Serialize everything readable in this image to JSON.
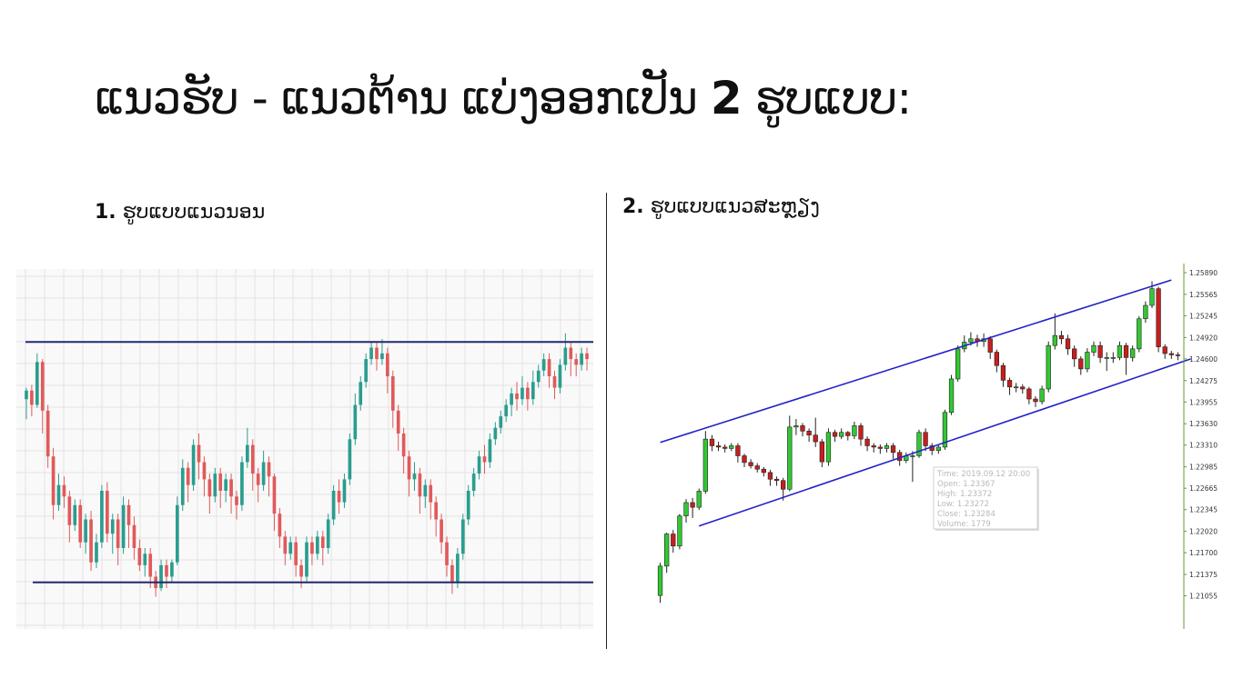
{
  "slide": {
    "title_main": "ແນວຮັບ - ແນວຕ້ານ ແບ່ງອອກເປັນ",
    "title_num": "2",
    "title_tail": "ຮູບແບບ:",
    "sub1_num": "1.",
    "sub1_text": "ຮູບແບບແນວນອນ",
    "sub2_num": "2.",
    "sub2_text": "ຮູບແບບແນວສະຫຼຽງ"
  },
  "colors": {
    "background": "#ffffff",
    "chart1_up": "#2a9d8f",
    "chart1_down": "#e05a5a",
    "chart1_level": "#1f2a6e",
    "chart2_up": "#32c832",
    "chart2_down": "#c81e1e",
    "chart2_channel": "#2222c8",
    "axis": "#669933"
  },
  "chart_data": [
    {
      "type": "candlestick",
      "pattern": "horizontal support and resistance",
      "grid": true,
      "y_range": [
        0,
        100
      ],
      "resistance_level": 92,
      "support_level": 8,
      "candles": [
        [
          72,
          75,
          65,
          76
        ],
        [
          75,
          70,
          66,
          77
        ],
        [
          70,
          85,
          69,
          88
        ],
        [
          85,
          68,
          60,
          86
        ],
        [
          68,
          52,
          48,
          70
        ],
        [
          52,
          35,
          30,
          55
        ],
        [
          35,
          42,
          33,
          46
        ],
        [
          42,
          38,
          34,
          45
        ],
        [
          38,
          28,
          22,
          40
        ],
        [
          28,
          35,
          26,
          37
        ],
        [
          35,
          22,
          20,
          37
        ],
        [
          22,
          30,
          18,
          32
        ],
        [
          30,
          15,
          12,
          33
        ],
        [
          15,
          22,
          13,
          25
        ],
        [
          22,
          40,
          20,
          42
        ],
        [
          40,
          25,
          22,
          43
        ],
        [
          25,
          30,
          18,
          32
        ],
        [
          30,
          20,
          14,
          32
        ],
        [
          20,
          35,
          18,
          38
        ],
        [
          35,
          28,
          20,
          37
        ],
        [
          28,
          20,
          16,
          31
        ],
        [
          20,
          14,
          12,
          23
        ],
        [
          14,
          18,
          10,
          20
        ],
        [
          18,
          10,
          6,
          20
        ],
        [
          10,
          6,
          3,
          12
        ],
        [
          6,
          14,
          5,
          16
        ],
        [
          14,
          10,
          6,
          16
        ],
        [
          10,
          15,
          8,
          16
        ],
        [
          15,
          35,
          14,
          38
        ],
        [
          35,
          48,
          33,
          51
        ],
        [
          48,
          42,
          36,
          50
        ],
        [
          42,
          56,
          40,
          58
        ],
        [
          56,
          50,
          44,
          60
        ],
        [
          50,
          44,
          38,
          52
        ],
        [
          44,
          38,
          32,
          46
        ],
        [
          38,
          46,
          36,
          48
        ],
        [
          46,
          40,
          34,
          48
        ],
        [
          40,
          44,
          36,
          46
        ],
        [
          44,
          38,
          32,
          46
        ],
        [
          38,
          35,
          30,
          40
        ],
        [
          35,
          50,
          33,
          52
        ],
        [
          50,
          56,
          48,
          62
        ],
        [
          56,
          46,
          40,
          58
        ],
        [
          46,
          42,
          36,
          48
        ],
        [
          42,
          50,
          40,
          54
        ],
        [
          50,
          45,
          38,
          52
        ],
        [
          45,
          32,
          26,
          46
        ],
        [
          32,
          24,
          20,
          34
        ],
        [
          24,
          18,
          14,
          26
        ],
        [
          18,
          22,
          16,
          24
        ],
        [
          22,
          14,
          10,
          24
        ],
        [
          14,
          10,
          6,
          16
        ],
        [
          10,
          22,
          8,
          24
        ],
        [
          22,
          18,
          14,
          24
        ],
        [
          18,
          24,
          16,
          26
        ],
        [
          24,
          20,
          14,
          26
        ],
        [
          20,
          30,
          18,
          32
        ],
        [
          30,
          40,
          28,
          42
        ],
        [
          40,
          36,
          32,
          44
        ],
        [
          36,
          44,
          34,
          46
        ],
        [
          44,
          58,
          42,
          60
        ],
        [
          58,
          70,
          56,
          74
        ],
        [
          70,
          78,
          68,
          80
        ],
        [
          78,
          86,
          76,
          88
        ],
        [
          86,
          90,
          84,
          92
        ],
        [
          90,
          86,
          82,
          92
        ],
        [
          86,
          88,
          84,
          93
        ],
        [
          88,
          80,
          74,
          90
        ],
        [
          80,
          68,
          62,
          82
        ],
        [
          68,
          60,
          54,
          70
        ],
        [
          60,
          52,
          46,
          62
        ],
        [
          52,
          44,
          38,
          54
        ],
        [
          44,
          46,
          40,
          50
        ],
        [
          46,
          38,
          32,
          48
        ],
        [
          38,
          42,
          34,
          44
        ],
        [
          42,
          36,
          30,
          44
        ],
        [
          36,
          30,
          24,
          38
        ],
        [
          30,
          22,
          18,
          32
        ],
        [
          22,
          14,
          10,
          24
        ],
        [
          14,
          8,
          4,
          16
        ],
        [
          8,
          18,
          6,
          20
        ],
        [
          18,
          30,
          16,
          32
        ],
        [
          30,
          40,
          28,
          42
        ],
        [
          40,
          46,
          38,
          48
        ],
        [
          46,
          52,
          44,
          54
        ],
        [
          52,
          50,
          46,
          56
        ],
        [
          50,
          58,
          48,
          60
        ],
        [
          58,
          62,
          56,
          64
        ],
        [
          62,
          66,
          60,
          68
        ],
        [
          66,
          70,
          64,
          72
        ],
        [
          70,
          74,
          66,
          76
        ],
        [
          74,
          72,
          68,
          78
        ],
        [
          72,
          76,
          70,
          80
        ],
        [
          76,
          72,
          68,
          78
        ],
        [
          72,
          78,
          70,
          82
        ],
        [
          78,
          82,
          76,
          84
        ],
        [
          82,
          86,
          80,
          88
        ],
        [
          86,
          80,
          76,
          88
        ],
        [
          80,
          76,
          72,
          82
        ],
        [
          76,
          84,
          74,
          86
        ],
        [
          84,
          90,
          82,
          95
        ],
        [
          90,
          86,
          80,
          92
        ],
        [
          86,
          84,
          80,
          88
        ],
        [
          84,
          88,
          82,
          90
        ],
        [
          88,
          86,
          82,
          90
        ]
      ]
    },
    {
      "type": "candlestick",
      "pattern": "ascending channel",
      "y_range": [
        1.2075,
        1.2589
      ],
      "y_ticks": [
        "1.25890",
        "1.25565",
        "1.25245",
        "1.24920",
        "1.24600",
        "1.24275",
        "1.23955",
        "1.23630",
        "1.23310",
        "1.22985",
        "1.22665",
        "1.22345",
        "1.22020",
        "1.21700",
        "1.21375",
        "1.21055"
      ],
      "channel": {
        "upper": [
          [
            0,
            1.2335
          ],
          [
            79,
            1.2578
          ]
        ],
        "lower": [
          [
            6,
            1.221
          ],
          [
            82,
            1.246
          ]
        ]
      },
      "candles": [
        [
          1.2106,
          1.215,
          1.2095,
          1.2155
        ],
        [
          1.215,
          1.2198,
          1.214,
          1.22
        ],
        [
          1.2198,
          1.218,
          1.217,
          1.2204
        ],
        [
          1.218,
          1.2225,
          1.2175,
          1.2228
        ],
        [
          1.2225,
          1.2245,
          1.2215,
          1.225
        ],
        [
          1.2245,
          1.2238,
          1.2222,
          1.2252
        ],
        [
          1.2238,
          1.2262,
          1.2234,
          1.2266
        ],
        [
          1.2262,
          1.234,
          1.2258,
          1.2352
        ],
        [
          1.234,
          1.233,
          1.2322,
          1.2346
        ],
        [
          1.233,
          1.2328,
          1.2322,
          1.2336
        ],
        [
          1.2328,
          1.2326,
          1.232,
          1.2332
        ],
        [
          1.2326,
          1.233,
          1.2322,
          1.2334
        ],
        [
          1.233,
          1.2315,
          1.2305,
          1.2334
        ],
        [
          1.2315,
          1.2305,
          1.2298,
          1.2318
        ],
        [
          1.2305,
          1.23,
          1.2296,
          1.231
        ],
        [
          1.23,
          1.2295,
          1.229,
          1.2304
        ],
        [
          1.2295,
          1.229,
          1.2284,
          1.2298
        ],
        [
          1.229,
          1.228,
          1.227,
          1.2294
        ],
        [
          1.228,
          1.2278,
          1.227,
          1.2284
        ],
        [
          1.2278,
          1.2265,
          1.2248,
          1.2282
        ],
        [
          1.2265,
          1.2358,
          1.2262,
          1.2375
        ],
        [
          1.2358,
          1.236,
          1.2346,
          1.237
        ],
        [
          1.236,
          1.2352,
          1.2344,
          1.2364
        ],
        [
          1.2352,
          1.2346,
          1.2336,
          1.2356
        ],
        [
          1.2346,
          1.2336,
          1.2328,
          1.2372
        ],
        [
          1.2336,
          1.2306,
          1.2298,
          1.234
        ],
        [
          1.2306,
          1.235,
          1.23,
          1.2356
        ],
        [
          1.235,
          1.2344,
          1.2336,
          1.2354
        ],
        [
          1.2344,
          1.235,
          1.234,
          1.2356
        ],
        [
          1.235,
          1.2345,
          1.2338,
          1.2352
        ],
        [
          1.2345,
          1.236,
          1.234,
          1.2366
        ],
        [
          1.236,
          1.234,
          1.233,
          1.2364
        ],
        [
          1.234,
          1.233,
          1.2322,
          1.2344
        ],
        [
          1.233,
          1.2328,
          1.232,
          1.2334
        ],
        [
          1.2328,
          1.2326,
          1.2318,
          1.2332
        ],
        [
          1.2326,
          1.233,
          1.232,
          1.2334
        ],
        [
          1.233,
          1.232,
          1.231,
          1.2334
        ],
        [
          1.232,
          1.2308,
          1.23,
          1.2324
        ],
        [
          1.2308,
          1.2315,
          1.2304,
          1.232
        ],
        [
          1.2315,
          1.2315,
          1.2276,
          1.2322
        ],
        [
          1.2315,
          1.235,
          1.2312,
          1.2354
        ],
        [
          1.235,
          1.233,
          1.2322,
          1.2356
        ],
        [
          1.233,
          1.2323,
          1.2316,
          1.2334
        ],
        [
          1.2323,
          1.2328,
          1.2318,
          1.2332
        ],
        [
          1.2328,
          1.238,
          1.2324,
          1.2384
        ],
        [
          1.238,
          1.243,
          1.2376,
          1.2436
        ],
        [
          1.243,
          1.2475,
          1.2426,
          1.248
        ],
        [
          1.2475,
          1.2485,
          1.247,
          1.2495
        ],
        [
          1.2485,
          1.249,
          1.248,
          1.25
        ],
        [
          1.249,
          1.2486,
          1.2478,
          1.2496
        ],
        [
          1.2486,
          1.249,
          1.2478,
          1.2498
        ],
        [
          1.249,
          1.247,
          1.246,
          1.2494
        ],
        [
          1.247,
          1.245,
          1.244,
          1.2474
        ],
        [
          1.245,
          1.2428,
          1.2418,
          1.2454
        ],
        [
          1.2428,
          1.2418,
          1.2406,
          1.2432
        ],
        [
          1.2418,
          1.2418,
          1.241,
          1.2424
        ],
        [
          1.2418,
          1.2415,
          1.2408,
          1.2422
        ],
        [
          1.2415,
          1.24,
          1.2392,
          1.2418
        ],
        [
          1.24,
          1.2396,
          1.2388,
          1.2404
        ],
        [
          1.2396,
          1.2415,
          1.2392,
          1.242
        ],
        [
          1.2415,
          1.248,
          1.241,
          1.2486
        ],
        [
          1.248,
          1.2495,
          1.2474,
          1.2528
        ],
        [
          1.2495,
          1.249,
          1.2482,
          1.2502
        ],
        [
          1.249,
          1.2475,
          1.2466,
          1.2496
        ],
        [
          1.2475,
          1.246,
          1.2448,
          1.248
        ],
        [
          1.246,
          1.2445,
          1.2436,
          1.2464
        ],
        [
          1.2445,
          1.247,
          1.244,
          1.2476
        ],
        [
          1.247,
          1.248,
          1.2464,
          1.2486
        ],
        [
          1.248,
          1.2462,
          1.2454,
          1.2486
        ],
        [
          1.2462,
          1.2462,
          1.2442,
          1.247
        ],
        [
          1.2462,
          1.2462,
          1.2454,
          1.247
        ],
        [
          1.2462,
          1.248,
          1.2458,
          1.2486
        ],
        [
          1.248,
          1.2462,
          1.2436,
          1.2484
        ],
        [
          1.2462,
          1.2475,
          1.2456,
          1.248
        ],
        [
          1.2475,
          1.252,
          1.247,
          1.2524
        ],
        [
          1.252,
          1.254,
          1.2514,
          1.2546
        ],
        [
          1.254,
          1.2565,
          1.2536,
          1.2576
        ],
        [
          1.2565,
          1.2478,
          1.247,
          1.2568
        ],
        [
          1.2478,
          1.2468,
          1.246,
          1.2482
        ],
        [
          1.2468,
          1.2466,
          1.246,
          1.2472
        ],
        [
          1.2466,
          1.2465,
          1.2458,
          1.247
        ]
      ],
      "tooltip": {
        "time": "Time: 2019.09.12 20:00",
        "open": "Open: 1.23367",
        "high": "High: 1.23372",
        "low": "Low:  1.23272",
        "close": "Close: 1.23284",
        "volume": "Volume: 1779"
      }
    }
  ]
}
